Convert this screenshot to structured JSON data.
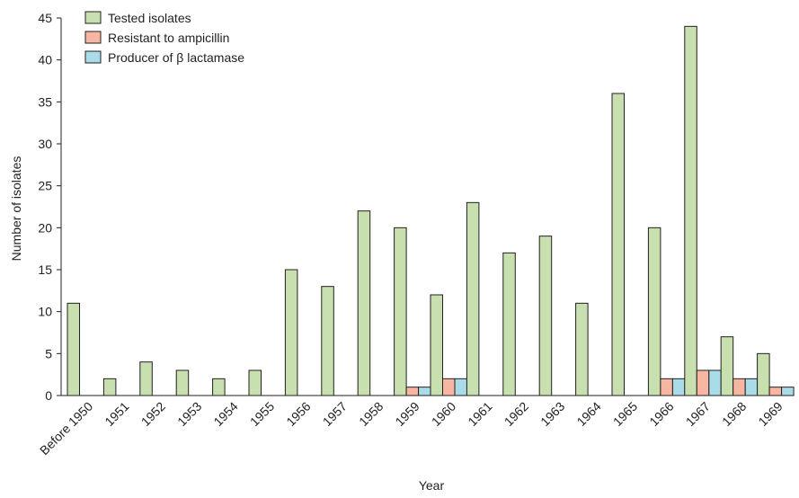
{
  "chart_data": {
    "type": "bar",
    "xlabel": "Year",
    "ylabel": "Number of isolates",
    "ylim": [
      0,
      45
    ],
    "yticks": [
      0,
      5,
      10,
      15,
      20,
      25,
      30,
      35,
      40,
      45
    ],
    "legend_position": "top-left",
    "grid": false,
    "categories": [
      "Before 1950",
      "1951",
      "1952",
      "1953",
      "1954",
      "1955",
      "1956",
      "1957",
      "1958",
      "1959",
      "1960",
      "1961",
      "1962",
      "1963",
      "1964",
      "1965",
      "1966",
      "1967",
      "1968",
      "1969"
    ],
    "series": [
      {
        "name": "Tested isolates",
        "color": "#c8dfb0",
        "values": [
          11,
          2,
          4,
          3,
          2,
          3,
          15,
          13,
          22,
          20,
          12,
          23,
          17,
          19,
          11,
          36,
          20,
          44,
          7,
          5
        ]
      },
      {
        "name": "Resistant to ampicillin",
        "color": "#f6b6a2",
        "values": [
          0,
          0,
          0,
          0,
          0,
          0,
          0,
          0,
          0,
          1,
          2,
          0,
          0,
          0,
          0,
          0,
          2,
          3,
          2,
          1
        ]
      },
      {
        "name": "Producer of β lactamase",
        "color": "#a9dbe8",
        "values": [
          0,
          0,
          0,
          0,
          0,
          0,
          0,
          0,
          0,
          1,
          2,
          0,
          0,
          0,
          0,
          0,
          2,
          3,
          2,
          1
        ]
      }
    ]
  }
}
